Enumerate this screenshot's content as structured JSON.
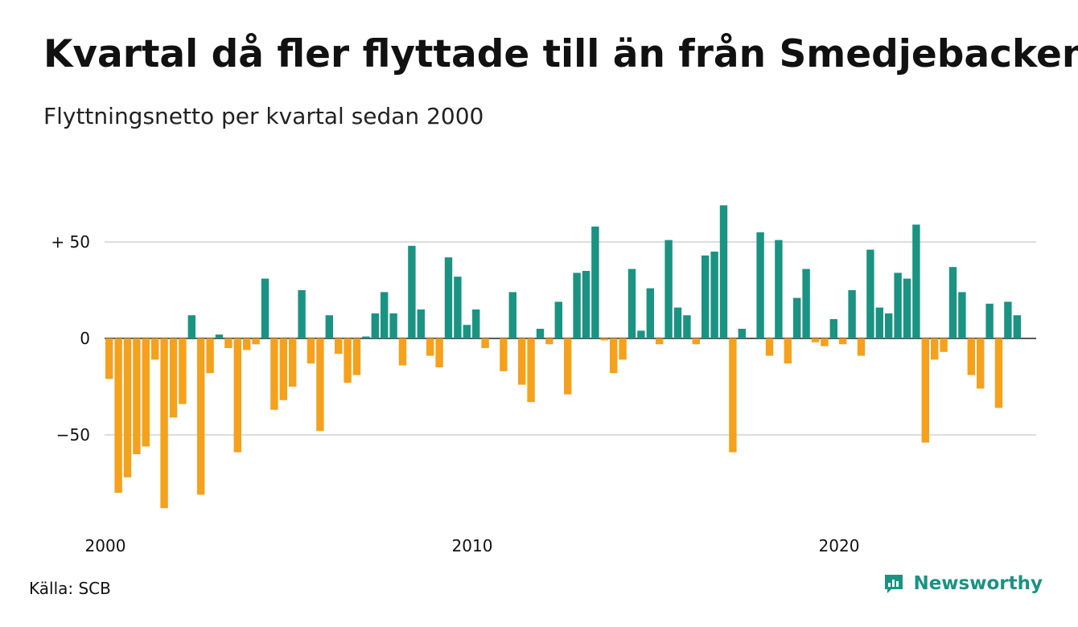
{
  "title": "Kvartal då fler flyttade till än från Smedjebacken",
  "subtitle": "Flyttningsnetto per kvartal sedan 2000",
  "source": "Källa: SCB",
  "brand": "Newsworthy",
  "colors": {
    "positive": "#1a9382",
    "negative": "#f5a11c",
    "grid": "#dddddd",
    "axis": "#222222"
  },
  "chart_data": {
    "type": "bar",
    "x_start": "2000 Q1",
    "x_ticks": [
      {
        "label": "2000",
        "year": 2000
      },
      {
        "label": "2010",
        "year": 2010
      },
      {
        "label": "2020",
        "year": 2020
      }
    ],
    "y_ticks": [
      {
        "label": "+ 50",
        "value": 50
      },
      {
        "label": "0",
        "value": 0
      },
      {
        "label": "−50",
        "value": -50
      }
    ],
    "ylim": [
      -90,
      70
    ],
    "grid": true,
    "values": [
      -21,
      -80,
      -72,
      -60,
      -56,
      -11,
      -88,
      -41,
      -34,
      12,
      -81,
      -18,
      2,
      -5,
      -59,
      -6,
      -3,
      31,
      -37,
      -32,
      -25,
      25,
      -13,
      -48,
      12,
      -8,
      -23,
      -19,
      1,
      13,
      24,
      13,
      -14,
      48,
      15,
      -9,
      -15,
      42,
      32,
      7,
      15,
      -5,
      0,
      -17,
      24,
      -24,
      -33,
      5,
      -3,
      19,
      -29,
      34,
      35,
      58,
      -1,
      -18,
      -11,
      36,
      4,
      26,
      -3,
      51,
      16,
      12,
      -3,
      43,
      45,
      69,
      -59,
      5,
      0,
      55,
      -9,
      51,
      -13,
      21,
      36,
      -2,
      -4,
      10,
      -3,
      25,
      -9,
      46,
      16,
      13,
      34,
      31,
      59,
      -54,
      -11,
      -7,
      37,
      24,
      -19,
      -26,
      18,
      -36,
      19,
      12
    ]
  }
}
